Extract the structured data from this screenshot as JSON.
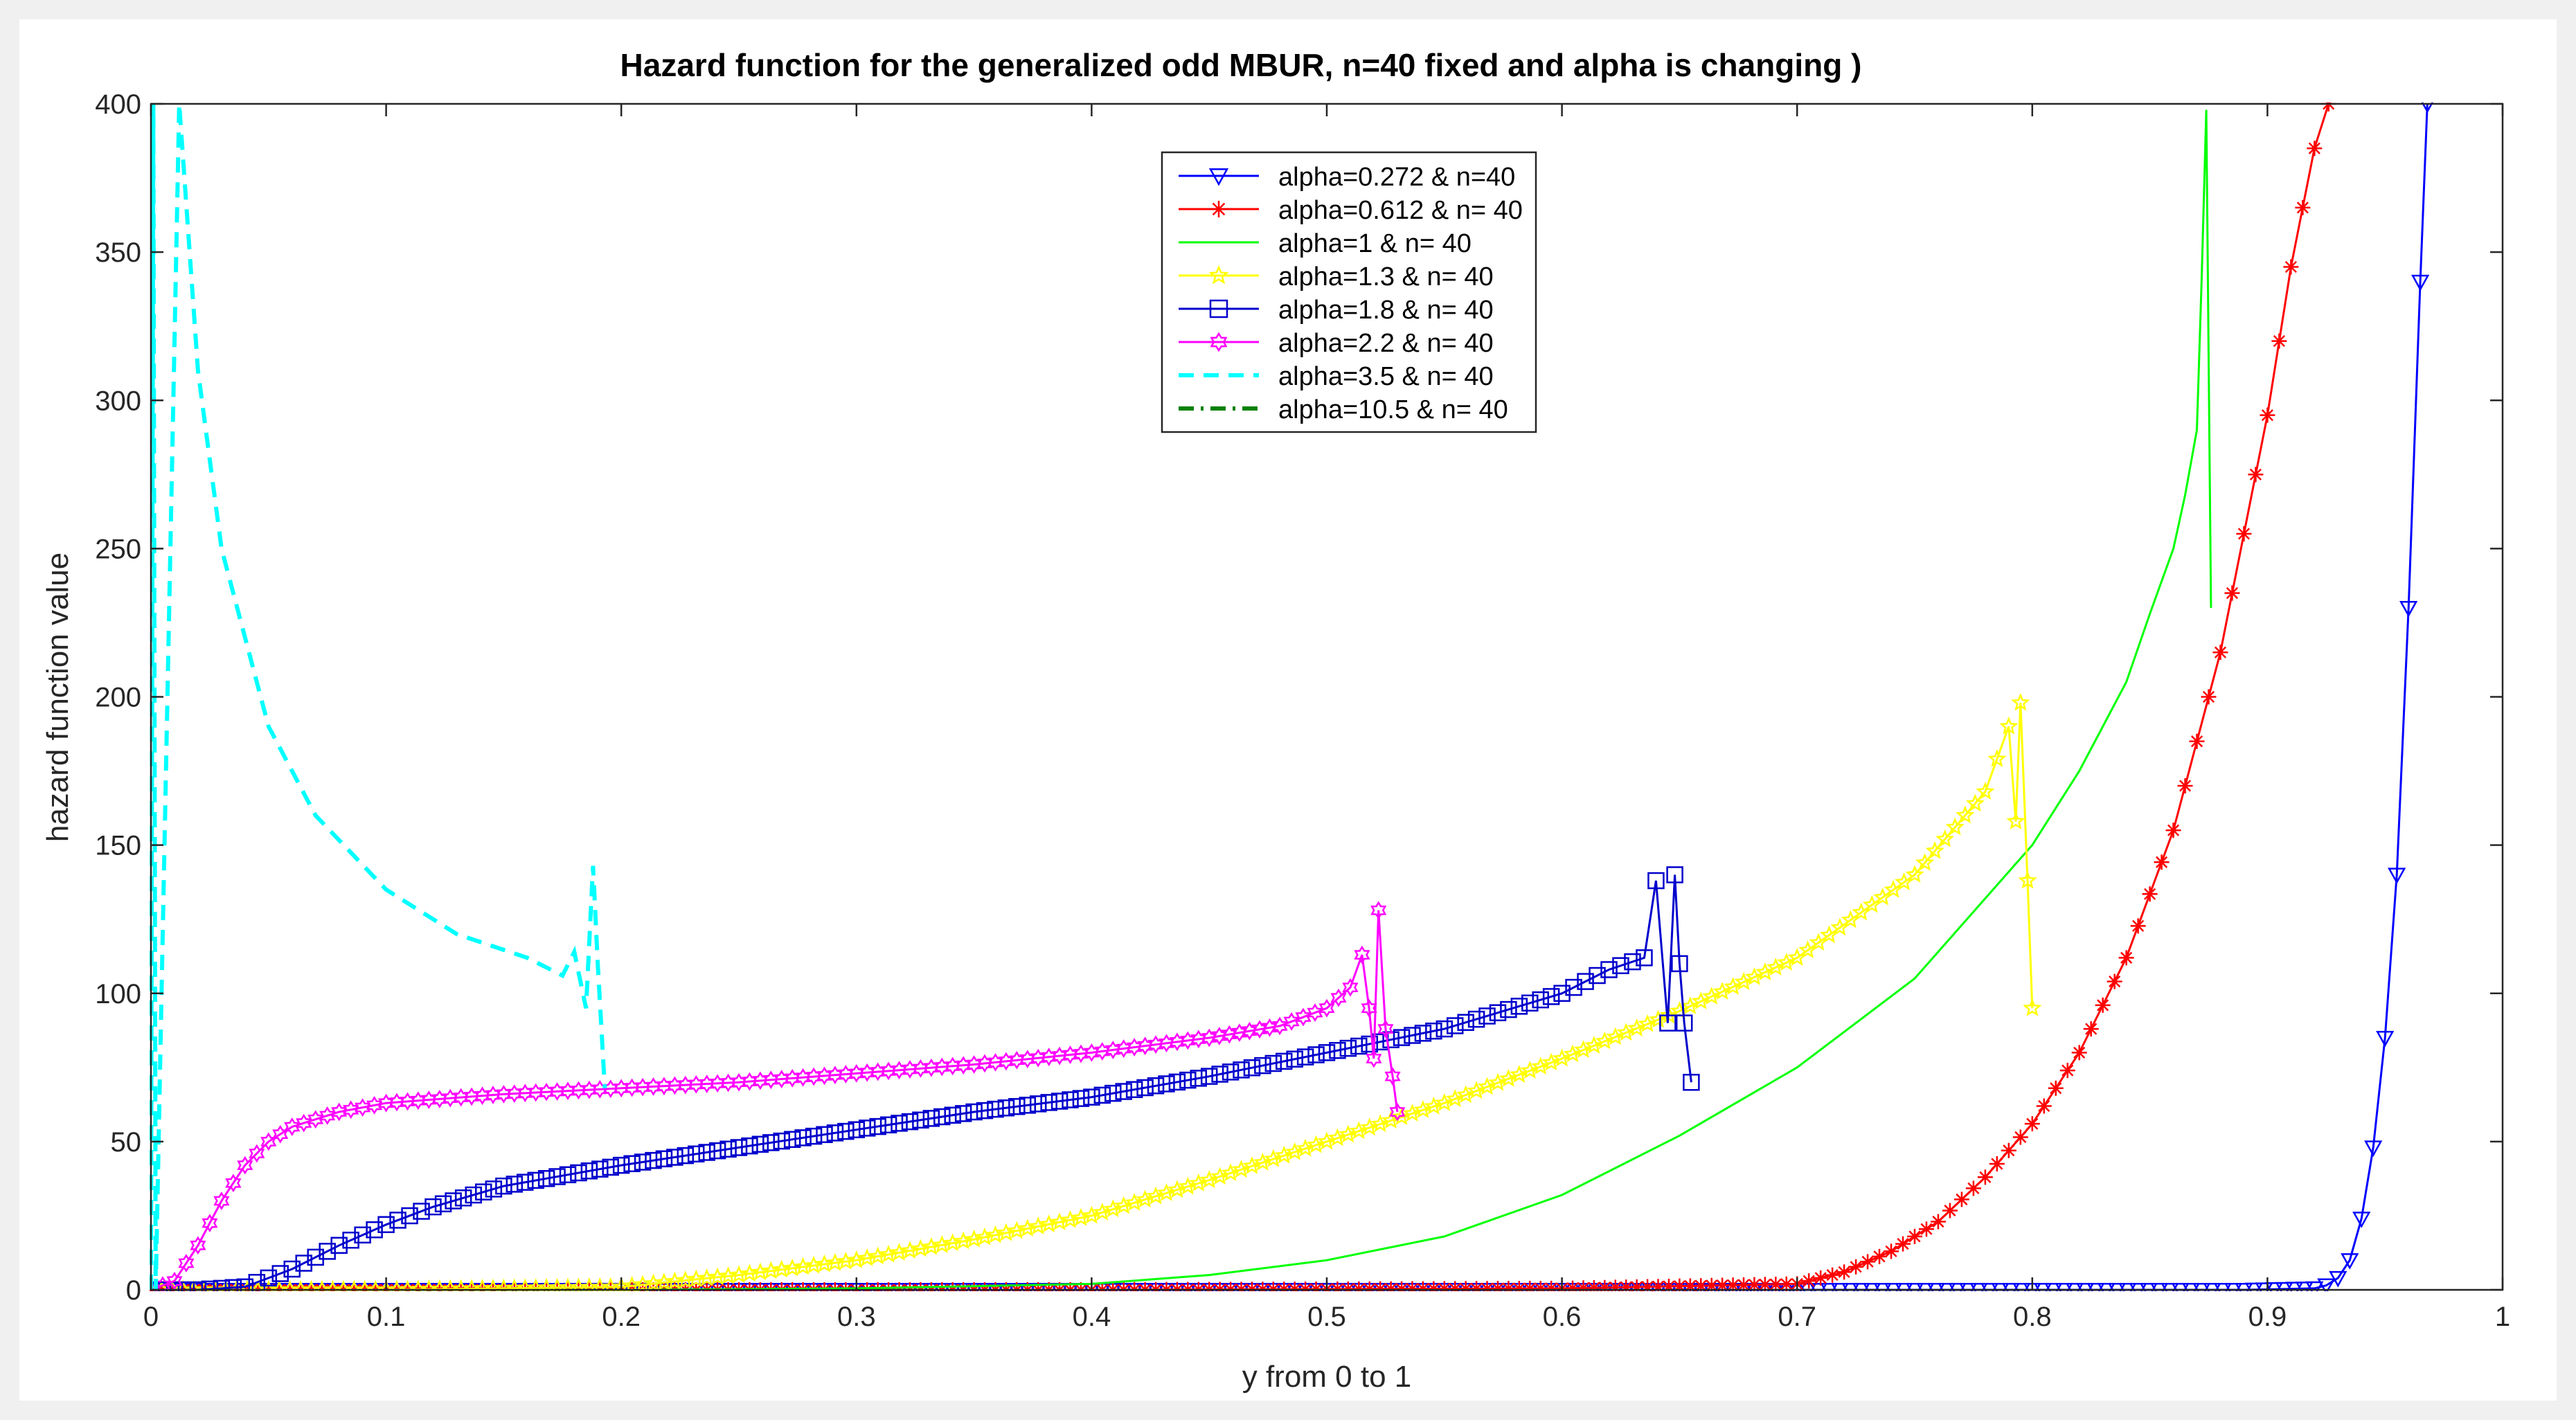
{
  "chart_data": {
    "type": "line",
    "title": "Hazard function for the generalized odd MBUR, n=40 fixed and alpha is changing )",
    "xlabel": "y from 0 to 1",
    "ylabel": "hazard function value",
    "xlim": [
      0,
      1
    ],
    "ylim": [
      0,
      400
    ],
    "xticks": [
      0,
      0.1,
      0.2,
      0.3,
      0.4,
      0.5,
      0.6,
      0.7,
      0.8,
      0.9,
      1
    ],
    "xtick_labels": [
      "0",
      "0.1",
      "0.2",
      "0.3",
      "0.4",
      "0.5",
      "0.6",
      "0.7",
      "0.8",
      "0.9",
      "1"
    ],
    "yticks": [
      0,
      50,
      100,
      150,
      200,
      250,
      300,
      350,
      400
    ],
    "ytick_labels": [
      "0",
      "50",
      "100",
      "150",
      "200",
      "250",
      "300",
      "350",
      "400"
    ],
    "grid": false,
    "legend_position": "top-center",
    "series": [
      {
        "name": "alpha=0.272 & n=40",
        "color": "#0000ff",
        "marker": "triangle-down",
        "dash": "solid",
        "points": [
          [
            0.0,
            0
          ],
          [
            0.3,
            0
          ],
          [
            0.6,
            0
          ],
          [
            0.8,
            0
          ],
          [
            0.89,
            0
          ],
          [
            0.92,
            0.5
          ],
          [
            0.925,
            1.5
          ],
          [
            0.93,
            4
          ],
          [
            0.935,
            10
          ],
          [
            0.94,
            24
          ],
          [
            0.945,
            48
          ],
          [
            0.95,
            85
          ],
          [
            0.955,
            140
          ],
          [
            0.96,
            230
          ],
          [
            0.965,
            340
          ],
          [
            0.968,
            400
          ]
        ]
      },
      {
        "name": "alpha=0.612 & n= 40",
        "color": "#ff0000",
        "marker": "asterisk",
        "dash": "solid",
        "points": [
          [
            0.0,
            0
          ],
          [
            0.4,
            0
          ],
          [
            0.6,
            0.5
          ],
          [
            0.7,
            2
          ],
          [
            0.72,
            6
          ],
          [
            0.74,
            13
          ],
          [
            0.76,
            23
          ],
          [
            0.78,
            38
          ],
          [
            0.8,
            56
          ],
          [
            0.82,
            80
          ],
          [
            0.84,
            112
          ],
          [
            0.86,
            155
          ],
          [
            0.88,
            215
          ],
          [
            0.9,
            295
          ],
          [
            0.91,
            345
          ],
          [
            0.92,
            385
          ],
          [
            0.926,
            400
          ]
        ]
      },
      {
        "name": "alpha=1 & n= 40",
        "color": "#00ff00",
        "marker": "circle",
        "dash": "solid",
        "points": [
          [
            0.0,
            0
          ],
          [
            0.2,
            0
          ],
          [
            0.3,
            0.5
          ],
          [
            0.4,
            2
          ],
          [
            0.45,
            5
          ],
          [
            0.5,
            10
          ],
          [
            0.55,
            18
          ],
          [
            0.6,
            32
          ],
          [
            0.65,
            52
          ],
          [
            0.7,
            75
          ],
          [
            0.75,
            105
          ],
          [
            0.8,
            150
          ],
          [
            0.82,
            175
          ],
          [
            0.84,
            205
          ],
          [
            0.85,
            228
          ],
          [
            0.86,
            250
          ],
          [
            0.865,
            268
          ],
          [
            0.87,
            290
          ],
          [
            0.872,
            340
          ],
          [
            0.874,
            398
          ],
          [
            0.876,
            230
          ]
        ]
      },
      {
        "name": "alpha=1.3 & n= 40",
        "color": "#ffff00",
        "marker": "star",
        "dash": "solid",
        "points": [
          [
            0.0,
            0
          ],
          [
            0.1,
            0
          ],
          [
            0.2,
            1
          ],
          [
            0.25,
            5
          ],
          [
            0.3,
            10
          ],
          [
            0.35,
            17
          ],
          [
            0.4,
            25
          ],
          [
            0.45,
            37
          ],
          [
            0.5,
            50
          ],
          [
            0.55,
            63
          ],
          [
            0.6,
            78
          ],
          [
            0.65,
            94
          ],
          [
            0.7,
            112
          ],
          [
            0.75,
            140
          ],
          [
            0.78,
            168
          ],
          [
            0.79,
            190
          ],
          [
            0.793,
            158
          ],
          [
            0.795,
            198
          ],
          [
            0.798,
            138
          ],
          [
            0.8,
            95
          ]
        ]
      },
      {
        "name": "alpha=1.8 & n= 40",
        "color": "#0000cc",
        "marker": "square",
        "dash": "solid",
        "points": [
          [
            0.0,
            0
          ],
          [
            0.02,
            0
          ],
          [
            0.04,
            1
          ],
          [
            0.06,
            7
          ],
          [
            0.08,
            15
          ],
          [
            0.1,
            22
          ],
          [
            0.12,
            28
          ],
          [
            0.15,
            35
          ],
          [
            0.2,
            42
          ],
          [
            0.25,
            48
          ],
          [
            0.3,
            54
          ],
          [
            0.35,
            60
          ],
          [
            0.4,
            65
          ],
          [
            0.45,
            72
          ],
          [
            0.5,
            80
          ],
          [
            0.55,
            88
          ],
          [
            0.6,
            100
          ],
          [
            0.62,
            108
          ],
          [
            0.635,
            112
          ],
          [
            0.64,
            138
          ],
          [
            0.645,
            90
          ],
          [
            0.648,
            140
          ],
          [
            0.65,
            110
          ],
          [
            0.652,
            90
          ],
          [
            0.655,
            70
          ]
        ]
      },
      {
        "name": "alpha=2.2 & n= 40",
        "color": "#ff00ff",
        "marker": "hexagram",
        "dash": "solid",
        "points": [
          [
            0.0,
            0
          ],
          [
            0.01,
            3
          ],
          [
            0.02,
            15
          ],
          [
            0.03,
            30
          ],
          [
            0.04,
            42
          ],
          [
            0.05,
            50
          ],
          [
            0.06,
            55
          ],
          [
            0.08,
            60
          ],
          [
            0.1,
            63
          ],
          [
            0.15,
            66
          ],
          [
            0.2,
            68
          ],
          [
            0.25,
            70
          ],
          [
            0.3,
            73
          ],
          [
            0.35,
            76
          ],
          [
            0.4,
            80
          ],
          [
            0.45,
            85
          ],
          [
            0.48,
            89
          ],
          [
            0.5,
            95
          ],
          [
            0.51,
            102
          ],
          [
            0.515,
            113
          ],
          [
            0.518,
            95
          ],
          [
            0.52,
            78
          ],
          [
            0.522,
            128
          ],
          [
            0.525,
            88
          ],
          [
            0.528,
            72
          ],
          [
            0.53,
            60
          ]
        ]
      },
      {
        "name": "alpha=3.5 & n= 40",
        "color": "#00ffff",
        "marker": "none",
        "dash": "dashed",
        "points": [
          [
            0.0,
            0
          ],
          [
            0.001,
            400
          ],
          [
            0.002,
            0
          ],
          [
            0.012,
            400
          ],
          [
            0.02,
            310
          ],
          [
            0.03,
            250
          ],
          [
            0.05,
            190
          ],
          [
            0.07,
            160
          ],
          [
            0.1,
            135
          ],
          [
            0.13,
            120
          ],
          [
            0.16,
            112
          ],
          [
            0.175,
            106
          ],
          [
            0.18,
            114
          ],
          [
            0.185,
            95
          ],
          [
            0.188,
            143
          ],
          [
            0.19,
            110
          ],
          [
            0.193,
            68
          ]
        ]
      },
      {
        "name": "alpha=10.5 & n= 40",
        "color": "#008000",
        "marker": "none",
        "dash": "dashdot",
        "points": [
          [
            0.0,
            0
          ],
          [
            0.0,
            0
          ]
        ]
      }
    ]
  }
}
